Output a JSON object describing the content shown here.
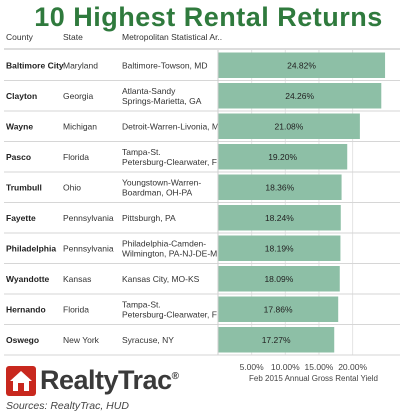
{
  "title": "10 Highest Rental Returns",
  "columns": [
    "County",
    "State",
    "Metropolitan Statistical Ar.."
  ],
  "logo": {
    "text": "RealtyTrac",
    "registered": "®",
    "color": "#c8281e"
  },
  "source": "Sources: RealtyTrac, HUD",
  "chart_data": {
    "type": "bar",
    "orientation": "horizontal",
    "title": "10 Highest Rental Returns",
    "xlabel": "Feb 2015 Annual Gross Rental Yield",
    "xlim": [
      0,
      0.26
    ],
    "xticks": [
      "5.00%",
      "10.00%",
      "15.00%",
      "20.00%"
    ],
    "xtick_values": [
      0.05,
      0.1,
      0.15,
      0.2
    ],
    "bar_color": "#8dbfa6",
    "grid": true,
    "rows": [
      {
        "county": "Baltimore City",
        "state": "Maryland",
        "msa": [
          "Baltimore-Towson, MD"
        ],
        "value": 0.2482,
        "label": "24.82%"
      },
      {
        "county": "Clayton",
        "state": "Georgia",
        "msa": [
          "Atlanta-Sandy",
          "Springs-Marietta, GA"
        ],
        "value": 0.2426,
        "label": "24.26%"
      },
      {
        "county": "Wayne",
        "state": "Michigan",
        "msa": [
          "Detroit-Warren-Livonia, MI"
        ],
        "value": 0.2108,
        "label": "21.08%"
      },
      {
        "county": "Pasco",
        "state": "Florida",
        "msa": [
          "Tampa-St.",
          "Petersburg-Clearwater, FL"
        ],
        "value": 0.192,
        "label": "19.20%"
      },
      {
        "county": "Trumbull",
        "state": "Ohio",
        "msa": [
          "Youngstown-Warren-",
          "Boardman, OH-PA"
        ],
        "value": 0.1836,
        "label": "18.36%"
      },
      {
        "county": "Fayette",
        "state": "Pennsylvania",
        "msa": [
          "Pittsburgh, PA"
        ],
        "value": 0.1824,
        "label": "18.24%"
      },
      {
        "county": "Philadelphia",
        "state": "Pennsylvania",
        "msa": [
          "Philadelphia-Camden-",
          "Wilmington, PA-NJ-DE-MD"
        ],
        "value": 0.1819,
        "label": "18.19%"
      },
      {
        "county": "Wyandotte",
        "state": "Kansas",
        "msa": [
          "Kansas City, MO-KS"
        ],
        "value": 0.1809,
        "label": "18.09%"
      },
      {
        "county": "Hernando",
        "state": "Florida",
        "msa": [
          "Tampa-St.",
          "Petersburg-Clearwater, FL"
        ],
        "value": 0.1786,
        "label": "17.86%"
      },
      {
        "county": "Oswego",
        "state": "New York",
        "msa": [
          "Syracuse, NY"
        ],
        "value": 0.1727,
        "label": "17.27%"
      }
    ]
  }
}
